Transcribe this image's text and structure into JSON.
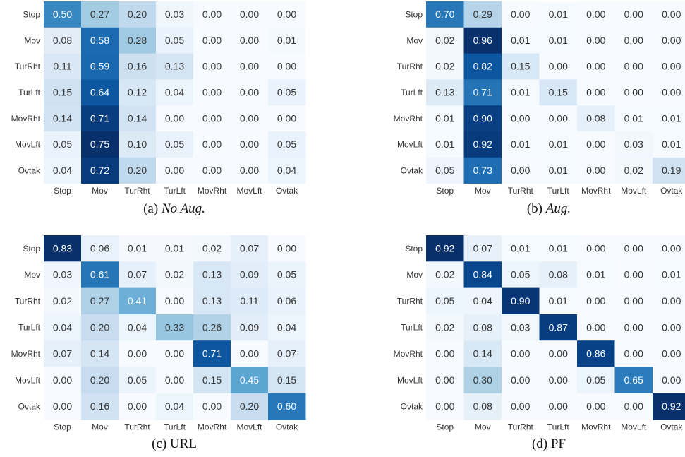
{
  "chart_data": [
    {
      "type": "heatmap",
      "label": "(a)",
      "caption": "No Aug.",
      "caption_italic": true,
      "colormap": "Blues",
      "x_categories": [
        "Stop",
        "Mov",
        "TurRht",
        "TurLft",
        "MovRht",
        "MovLft",
        "Ovtak"
      ],
      "y_categories": [
        "Stop",
        "Mov",
        "TurRht",
        "TurLft",
        "MovRht",
        "MovLft",
        "Ovtak"
      ],
      "values": [
        [
          0.5,
          0.27,
          0.2,
          0.03,
          0,
          0,
          0
        ],
        [
          0.08,
          0.58,
          0.28,
          0.05,
          0,
          0,
          0.01
        ],
        [
          0.11,
          0.59,
          0.16,
          0.13,
          0,
          0,
          0
        ],
        [
          0.15,
          0.64,
          0.12,
          0.04,
          0,
          0,
          0.05
        ],
        [
          0.14,
          0.71,
          0.14,
          0,
          0,
          0,
          0
        ],
        [
          0.05,
          0.75,
          0.1,
          0.05,
          0,
          0,
          0.05
        ],
        [
          0.04,
          0.72,
          0.2,
          0,
          0,
          0,
          0.04
        ]
      ],
      "value_labels": [
        [
          "0.50",
          "0.27",
          "0.20",
          "0.03",
          "0.00",
          "0.00",
          "0.00"
        ],
        [
          "0.08",
          "0.58",
          "0.28",
          "0.05",
          "0.00",
          "0.00",
          "0.01"
        ],
        [
          "0.11",
          "0.59",
          "0.16",
          "0.13",
          "0.00",
          "0.00",
          "0.00"
        ],
        [
          "0.15",
          "0.64",
          "0.12",
          "0.04",
          "0.00",
          "0.00",
          "0.05"
        ],
        [
          "0.14",
          "0.71",
          "0.14",
          "0.00",
          "0.00",
          "0.00",
          "0.00"
        ],
        [
          "0.05",
          "0.75",
          "0.10",
          "0.05",
          "0.00",
          "0.00",
          "0.05"
        ],
        [
          "0.04",
          "0.72",
          "0.20",
          "0.00",
          "0.00",
          "0.00",
          "0.04"
        ]
      ]
    },
    {
      "type": "heatmap",
      "label": "(b)",
      "caption": "Aug.",
      "caption_italic": true,
      "colormap": "Blues",
      "x_categories": [
        "Stop",
        "Mov",
        "TurRht",
        "TurLft",
        "MovRht",
        "MovLft",
        "Ovtak"
      ],
      "y_categories": [
        "Stop",
        "Mov",
        "TurRht",
        "TurLft",
        "MovRht",
        "MovLft",
        "Ovtak"
      ],
      "values": [
        [
          0.7,
          0.29,
          0,
          0.01,
          0,
          0,
          0
        ],
        [
          0.02,
          0.96,
          0.01,
          0.01,
          0,
          0,
          0
        ],
        [
          0.02,
          0.82,
          0.15,
          0,
          0,
          0,
          0
        ],
        [
          0.13,
          0.71,
          0.01,
          0.15,
          0,
          0,
          0
        ],
        [
          0.01,
          0.9,
          0,
          0,
          0.08,
          0.01,
          0.01
        ],
        [
          0.01,
          0.92,
          0.01,
          0.01,
          0,
          0.03,
          0.01
        ],
        [
          0.05,
          0.73,
          0,
          0.01,
          0,
          0.02,
          0.19
        ]
      ],
      "value_labels": [
        [
          "0.70",
          "0.29",
          "0.00",
          "0.01",
          "0.00",
          "0.00",
          "0.00"
        ],
        [
          "0.02",
          "0.96",
          "0.01",
          "0.01",
          "0.00",
          "0.00",
          "0.00"
        ],
        [
          "0.02",
          "0.82",
          "0.15",
          "0.00",
          "0.00",
          "0.00",
          "0.00"
        ],
        [
          "0.13",
          "0.71",
          "0.01",
          "0.15",
          "0.00",
          "0.00",
          "0.00"
        ],
        [
          "0.01",
          "0.90",
          "0.00",
          "0.00",
          "0.08",
          "0.01",
          "0.01"
        ],
        [
          "0.01",
          "0.92",
          "0.01",
          "0.01",
          "0.00",
          "0.03",
          "0.01"
        ],
        [
          "0.05",
          "0.73",
          "0.00",
          "0.01",
          "0.00",
          "0.02",
          "0.19"
        ]
      ]
    },
    {
      "type": "heatmap",
      "label": "(c)",
      "caption": "URL",
      "caption_italic": false,
      "colormap": "Blues",
      "x_categories": [
        "Stop",
        "Mov",
        "TurRht",
        "TurLft",
        "MovRht",
        "MovLft",
        "Ovtak"
      ],
      "y_categories": [
        "Stop",
        "Mov",
        "TurRht",
        "TurLft",
        "MovRht",
        "MovLft",
        "Ovtak"
      ],
      "values": [
        [
          0.83,
          0.06,
          0.01,
          0.01,
          0.02,
          0.07,
          0
        ],
        [
          0.03,
          0.61,
          0.07,
          0.02,
          0.13,
          0.09,
          0.05
        ],
        [
          0.02,
          0.27,
          0.41,
          0,
          0.13,
          0.11,
          0.06
        ],
        [
          0.04,
          0.2,
          0.04,
          0.33,
          0.26,
          0.09,
          0.04
        ],
        [
          0.07,
          0.14,
          0,
          0,
          0.71,
          0,
          0.07
        ],
        [
          0,
          0.2,
          0.05,
          0,
          0.15,
          0.45,
          0.15
        ],
        [
          0,
          0.16,
          0,
          0.04,
          0,
          0.2,
          0.6
        ]
      ],
      "value_labels": [
        [
          "0.83",
          "0.06",
          "0.01",
          "0.01",
          "0.02",
          "0.07",
          "0.00"
        ],
        [
          "0.03",
          "0.61",
          "0.07",
          "0.02",
          "0.13",
          "0.09",
          "0.05"
        ],
        [
          "0.02",
          "0.27",
          "0.41",
          "0.00",
          "0.13",
          "0.11",
          "0.06"
        ],
        [
          "0.04",
          "0.20",
          "0.04",
          "0.33",
          "0.26",
          "0.09",
          "0.04"
        ],
        [
          "0.07",
          "0.14",
          "0.00",
          "0.00",
          "0.71",
          "0.00",
          "0.07"
        ],
        [
          "0.00",
          "0.20",
          "0.05",
          "0.00",
          "0.15",
          "0.45",
          "0.15"
        ],
        [
          "0.00",
          "0.16",
          "0.00",
          "0.04",
          "0.00",
          "0.20",
          "0.60"
        ]
      ]
    },
    {
      "type": "heatmap",
      "label": "(d)",
      "caption": "PF",
      "caption_italic": false,
      "colormap": "Blues",
      "x_categories": [
        "Stop",
        "Mov",
        "TurRht",
        "TurLft",
        "MovRht",
        "MovLft",
        "Ovtak"
      ],
      "y_categories": [
        "Stop",
        "Mov",
        "TurRht",
        "TurLft",
        "MovRht",
        "MovLft",
        "Ovtak"
      ],
      "values": [
        [
          0.92,
          0.07,
          0.01,
          0.01,
          0,
          0,
          0
        ],
        [
          0.02,
          0.84,
          0.05,
          0.08,
          0.01,
          0,
          0.01
        ],
        [
          0.05,
          0.04,
          0.9,
          0.01,
          0,
          0,
          0
        ],
        [
          0.02,
          0.08,
          0.03,
          0.87,
          0,
          0,
          0
        ],
        [
          0,
          0.14,
          0,
          0,
          0.86,
          0,
          0
        ],
        [
          0,
          0.3,
          0,
          0,
          0.05,
          0.65,
          0
        ],
        [
          0,
          0.08,
          0,
          0,
          0,
          0,
          0.92
        ]
      ],
      "value_labels": [
        [
          "0.92",
          "0.07",
          "0.01",
          "0.01",
          "0.00",
          "0.00",
          "0.00"
        ],
        [
          "0.02",
          "0.84",
          "0.05",
          "0.08",
          "0.01",
          "0.00",
          "0.01"
        ],
        [
          "0.05",
          "0.04",
          "0.90",
          "0.01",
          "0.00",
          "0.00",
          "0.00"
        ],
        [
          "0.02",
          "0.08",
          "0.03",
          "0.87",
          "0.00",
          "0.00",
          "0.00"
        ],
        [
          "0.00",
          "0.14",
          "0.00",
          "0.00",
          "0.86",
          "0.00",
          "0.00"
        ],
        [
          "0.00",
          "0.30",
          "0.00",
          "0.00",
          "0.05",
          "0.65",
          "0.00"
        ],
        [
          "0.00",
          "0.08",
          "0.00",
          "0.00",
          "0.00",
          "0.00",
          "0.92"
        ]
      ]
    }
  ]
}
